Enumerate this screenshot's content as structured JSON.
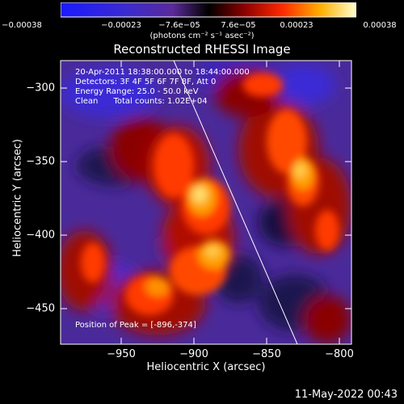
{
  "colorbar": {
    "ticks": [
      "−0.00038",
      "−0.00023",
      "−7.6e−05",
      "7.6e−05",
      "0.00023",
      "0.00038"
    ],
    "unit_label": "(photons cm⁻² s⁻¹ asec⁻²)"
  },
  "title": "Reconstructed RHESSI Image",
  "info": {
    "time": "20-Apr-2011 18:38:00.000 to 18:44:00.000",
    "detectors": "Detectors: 3F 4F 5F 6F 7F 8F, Att 0",
    "energy": "Energy Range: 25.0 - 50.0 keV",
    "clean": "Clean      Total counts: 1.02E+04"
  },
  "peak": "Position of Peak = [-896,-374]",
  "axes": {
    "xlabel": "Heliocentric X (arcsec)",
    "ylabel": "Heliocentric Y (arcsec)",
    "xticks": [
      "−950",
      "−900",
      "−850",
      "−800"
    ],
    "yticks": [
      "−300",
      "−350",
      "−400",
      "−450"
    ],
    "xrange": [
      -992,
      -797
    ],
    "yrange": [
      -472,
      -286
    ]
  },
  "footer": "11-May-2022 00:43",
  "colors": {
    "limb_line": "#ffffff",
    "background": "#000000"
  }
}
